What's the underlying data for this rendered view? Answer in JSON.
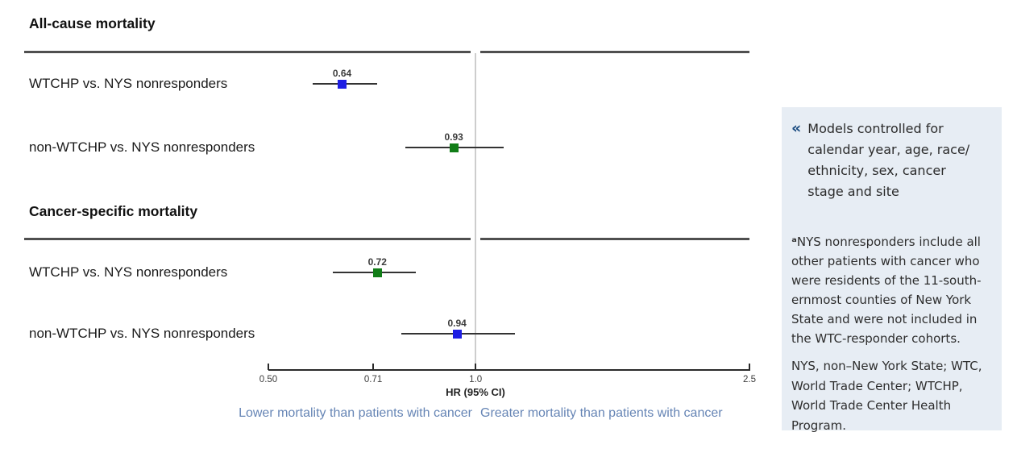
{
  "chart_data": {
    "type": "scatter",
    "variant": "forest-plot",
    "xlabel": "HR (95% CI)",
    "x_scale": "log",
    "xlim": [
      0.5,
      2.5
    ],
    "x_ticks": [
      0.5,
      0.71,
      1.0,
      2.5
    ],
    "x_tick_labels": [
      "0.50",
      "0.71",
      "1.0",
      "2.5"
    ],
    "reference_line": 1.0,
    "grid": false,
    "marker_colors": {
      "blue": "#1e1ee4",
      "green": "#117d17"
    },
    "sections": [
      {
        "heading": "All-cause mortality",
        "rows": [
          {
            "label": "WTCHP vs. NYS nonresponders",
            "hr": 0.64,
            "hr_label": "0.64",
            "ci": [
              0.58,
              0.72
            ],
            "color": "#1e1ee4"
          },
          {
            "label": "non-WTCHP vs. NYS nonresponders",
            "hr": 0.93,
            "hr_label": "0.93",
            "ci": [
              0.79,
              1.1
            ],
            "color": "#117d17"
          }
        ]
      },
      {
        "heading": "Cancer-specific mortality",
        "rows": [
          {
            "label": "WTCHP vs. NYS nonresponders",
            "hr": 0.72,
            "hr_label": "0.72",
            "ci": [
              0.62,
              0.82
            ],
            "color": "#117d17"
          },
          {
            "label": "non-WTCHP vs. NYS nonresponders",
            "hr": 0.94,
            "hr_label": "0.94",
            "ci": [
              0.78,
              1.14
            ],
            "color": "#1e1ee4"
          }
        ]
      }
    ],
    "annotations": {
      "lower": "Lower mortality than patients with cancer",
      "greater": "Greater mortality than patients with cancer",
      "annotation_color": "#6685b5"
    }
  },
  "sidebar": {
    "background": "#e7edf4",
    "icon_glyph": "«",
    "icon_color": "#1a4b80",
    "highlight": "Models controlled for\ncalendar year, age, race/\nethnicity, sex, cancer\nstage and site",
    "footnote_marker": "ᵃ",
    "footnote": "NYS nonresponders include all\nother patients with cancer who\nwere residents of the 11-south-\nernmost counties of New York\nState and were not included in\nthe WTC-responder cohorts.",
    "abbreviations": "NYS, non–New York State; WTC,\nWorld Trade Center; WTCHP,\nWorld Trade Center Health\nProgram."
  }
}
